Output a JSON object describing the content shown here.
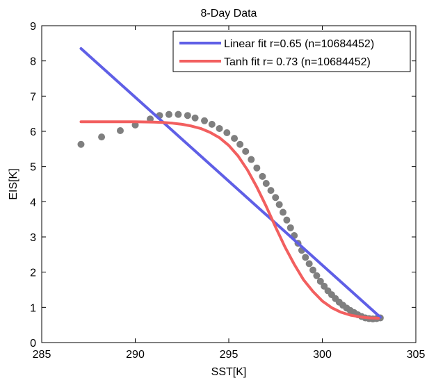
{
  "chart_data": {
    "type": "scatter",
    "title": "8-Day Data",
    "xlabel": "SST[K]",
    "ylabel": "EIS[K]",
    "xlim": [
      285,
      305
    ],
    "ylim": [
      0,
      9
    ],
    "xticks": [
      285,
      290,
      295,
      300,
      305
    ],
    "yticks": [
      0,
      1,
      2,
      3,
      4,
      5,
      6,
      7,
      8,
      9
    ],
    "grid": false,
    "legend_position": "top-right",
    "colors": {
      "points": "#7f7f7f",
      "linear": "#5f5fe6",
      "tanh": "#f25f5f"
    },
    "series": [
      {
        "kind": "points",
        "x": [
          287.1,
          288.2,
          289.2,
          290.0,
          290.8,
          291.3,
          291.8,
          292.3,
          292.8,
          293.2,
          293.7,
          294.1,
          294.5,
          294.9,
          295.3,
          295.6,
          295.9,
          296.2,
          296.5,
          296.8,
          297.0,
          297.25,
          297.5,
          297.7,
          297.9,
          298.1,
          298.3,
          298.5,
          298.7,
          298.9,
          299.1,
          299.3,
          299.5,
          299.7,
          299.9,
          300.1,
          300.3,
          300.5,
          300.7,
          300.9,
          301.1,
          301.3,
          301.5,
          301.7,
          301.9,
          302.1,
          302.3,
          302.5,
          302.7,
          302.9,
          303.1
        ],
        "y": [
          5.63,
          5.84,
          6.02,
          6.18,
          6.35,
          6.45,
          6.48,
          6.48,
          6.45,
          6.38,
          6.3,
          6.2,
          6.08,
          5.96,
          5.8,
          5.63,
          5.43,
          5.2,
          4.96,
          4.72,
          4.52,
          4.32,
          4.12,
          3.92,
          3.7,
          3.48,
          3.26,
          3.04,
          2.82,
          2.62,
          2.42,
          2.24,
          2.06,
          1.9,
          1.74,
          1.6,
          1.47,
          1.36,
          1.25,
          1.15,
          1.06,
          0.98,
          0.91,
          0.85,
          0.79,
          0.74,
          0.7,
          0.68,
          0.67,
          0.68,
          0.7
        ]
      },
      {
        "kind": "line",
        "name": "Linear fit r=0.65 (n=10684452)",
        "x": [
          287.1,
          303.1
        ],
        "y": [
          8.35,
          0.72
        ]
      },
      {
        "kind": "line",
        "name": "Tanh fit r= 0.73 (n=10684452)",
        "x": [
          287.1,
          288.0,
          289.0,
          290.0,
          291.0,
          291.5,
          292.0,
          292.5,
          293.0,
          293.5,
          294.0,
          294.5,
          295.0,
          295.5,
          296.0,
          296.5,
          297.0,
          297.5,
          298.0,
          298.5,
          299.0,
          299.5,
          300.0,
          300.5,
          301.0,
          301.5,
          302.0,
          302.5,
          303.0
        ],
        "y": [
          6.27,
          6.27,
          6.27,
          6.27,
          6.26,
          6.25,
          6.23,
          6.2,
          6.15,
          6.08,
          5.97,
          5.82,
          5.6,
          5.3,
          4.9,
          4.42,
          3.87,
          3.28,
          2.72,
          2.22,
          1.78,
          1.45,
          1.18,
          0.99,
          0.86,
          0.78,
          0.73,
          0.7,
          0.69
        ]
      }
    ]
  }
}
